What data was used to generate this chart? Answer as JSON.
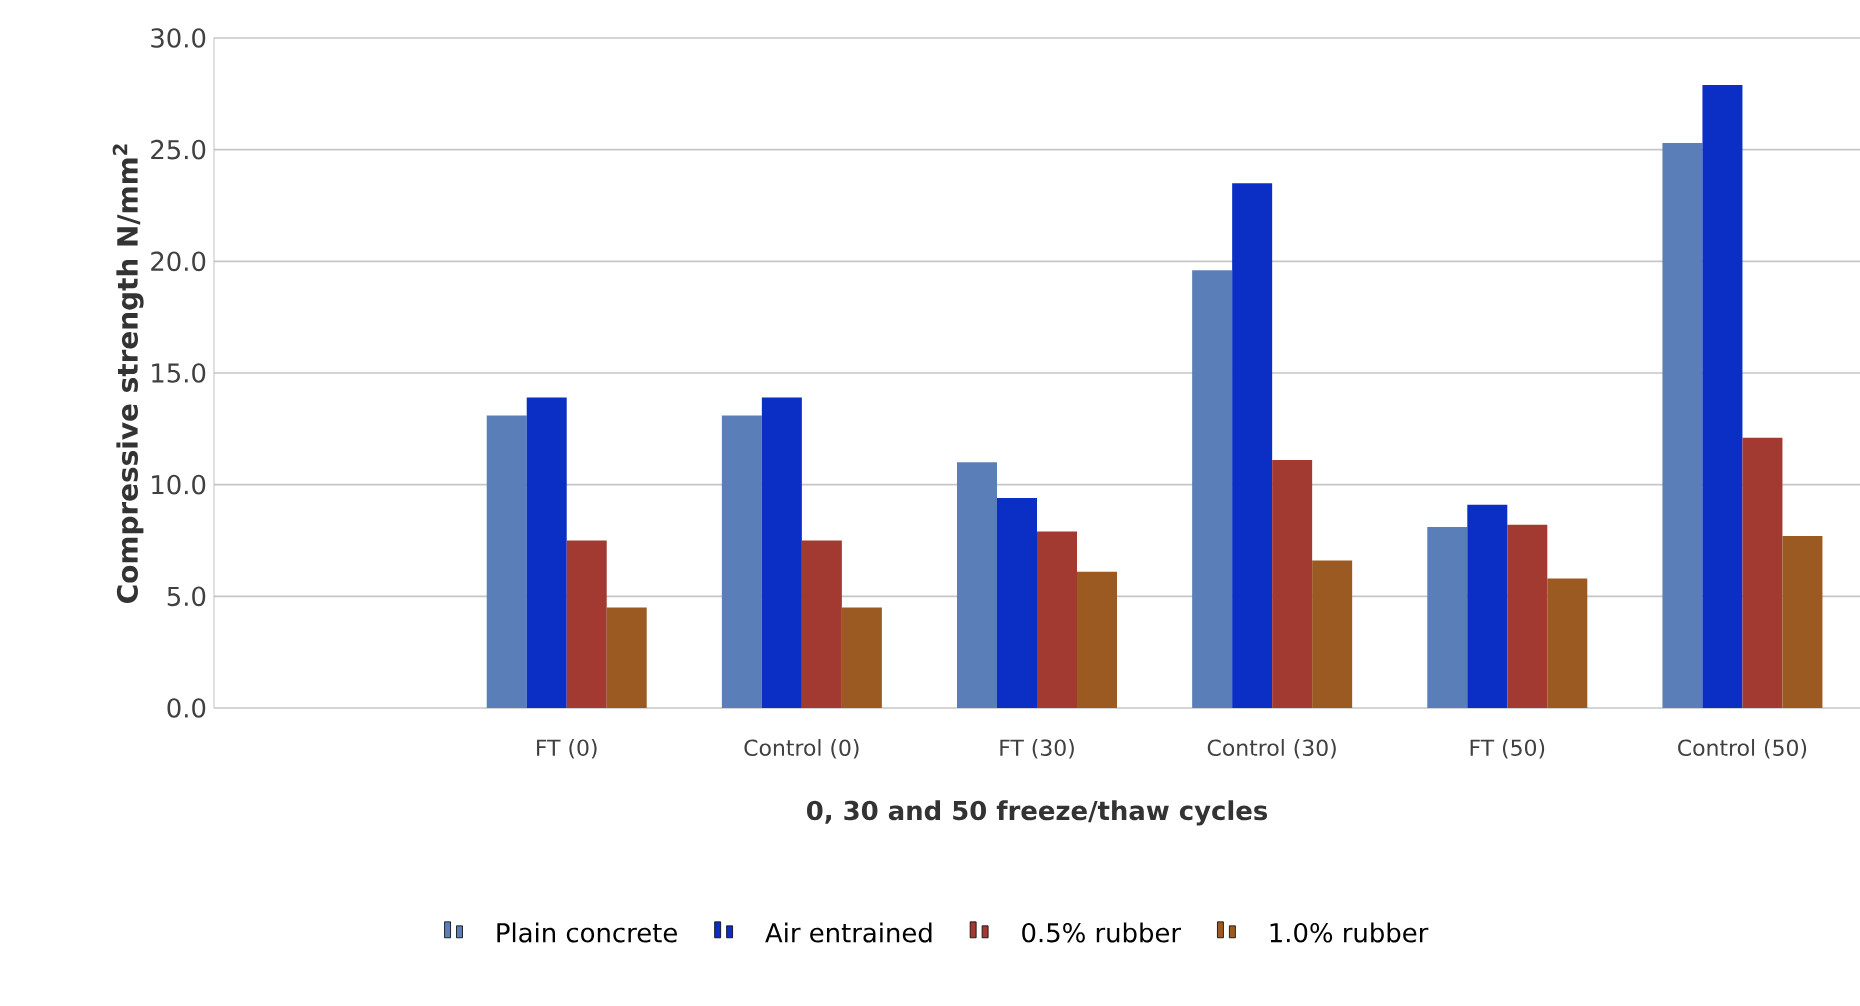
{
  "chart_data": {
    "type": "bar",
    "xlabel": "0, 30 and 50 freeze/thaw cycles",
    "ylabel": "Compressive strength N/mm$^{2}$",
    "categories": [
      null,
      "FT (0)",
      "Control (0)",
      "FT (30)",
      "Control (30)",
      "FT (50)",
      "Control (50)"
    ],
    "series": [
      {
        "name": "Plain concrete",
        "color": "#5a7fb8",
        "values": [
          null,
          13.1,
          13.1,
          11.0,
          19.6,
          8.1,
          25.3
        ]
      },
      {
        "name": "Air entrained",
        "color": "#0b2fc4",
        "values": [
          null,
          13.9,
          13.9,
          9.4,
          23.5,
          9.1,
          27.9
        ]
      },
      {
        "name": "0.5% rubber",
        "color": "#a33a32",
        "values": [
          null,
          7.5,
          7.5,
          7.9,
          11.1,
          8.2,
          12.1
        ]
      },
      {
        "name": "1.0% rubber",
        "color": "#9c5a23",
        "values": [
          null,
          4.5,
          4.5,
          6.1,
          6.6,
          5.8,
          7.7
        ]
      }
    ],
    "ylim": [
      0,
      30
    ],
    "yticks": [
      {
        "value": 0,
        "label": "0.0"
      },
      {
        "value": 5,
        "label": "5.0"
      },
      {
        "value": 10,
        "label": "10.0"
      },
      {
        "value": 15,
        "label": "15.0"
      },
      {
        "value": 20,
        "label": "20.0"
      },
      {
        "value": 25,
        "label": "25.0"
      },
      {
        "value": 30,
        "label": "30.0"
      }
    ],
    "grid": "y",
    "legend": "bottom"
  }
}
